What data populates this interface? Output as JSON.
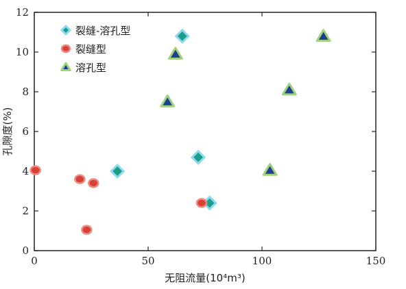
{
  "chart_data": {
    "type": "scatter",
    "xlabel": "无阻流量(10⁴m³)",
    "ylabel": "孔隙度(%)",
    "xlim": [
      0,
      150
    ],
    "ylim": [
      0,
      12
    ],
    "xticks": [
      0,
      50,
      100,
      150
    ],
    "yticks": [
      0,
      2,
      4,
      6,
      8,
      10,
      12
    ],
    "grid": false,
    "legend_position": "top-left",
    "series": [
      {
        "name": "裂缝-溶孔型",
        "marker": "diamond",
        "color": "#1a9e8a",
        "edge_color": "#8fd9ef",
        "points": [
          {
            "x": 65,
            "y": 10.8
          },
          {
            "x": 36.5,
            "y": 4.0
          },
          {
            "x": 72,
            "y": 4.7
          },
          {
            "x": 77,
            "y": 2.4
          }
        ]
      },
      {
        "name": "裂缝型",
        "marker": "circle",
        "color": "#d9403a",
        "edge_color": "#f08a80",
        "points": [
          {
            "x": 0.5,
            "y": 4.05
          },
          {
            "x": 20,
            "y": 3.6
          },
          {
            "x": 26,
            "y": 3.4
          },
          {
            "x": 23,
            "y": 1.05
          },
          {
            "x": 73.5,
            "y": 2.4
          }
        ]
      },
      {
        "name": "溶孔型",
        "marker": "triangle",
        "color": "#1f3f8f",
        "edge_color": "#9fd17f",
        "points": [
          {
            "x": 62,
            "y": 9.9
          },
          {
            "x": 58.5,
            "y": 7.5
          },
          {
            "x": 127,
            "y": 10.8
          },
          {
            "x": 112,
            "y": 8.1
          },
          {
            "x": 103.5,
            "y": 4.05
          }
        ]
      }
    ]
  }
}
